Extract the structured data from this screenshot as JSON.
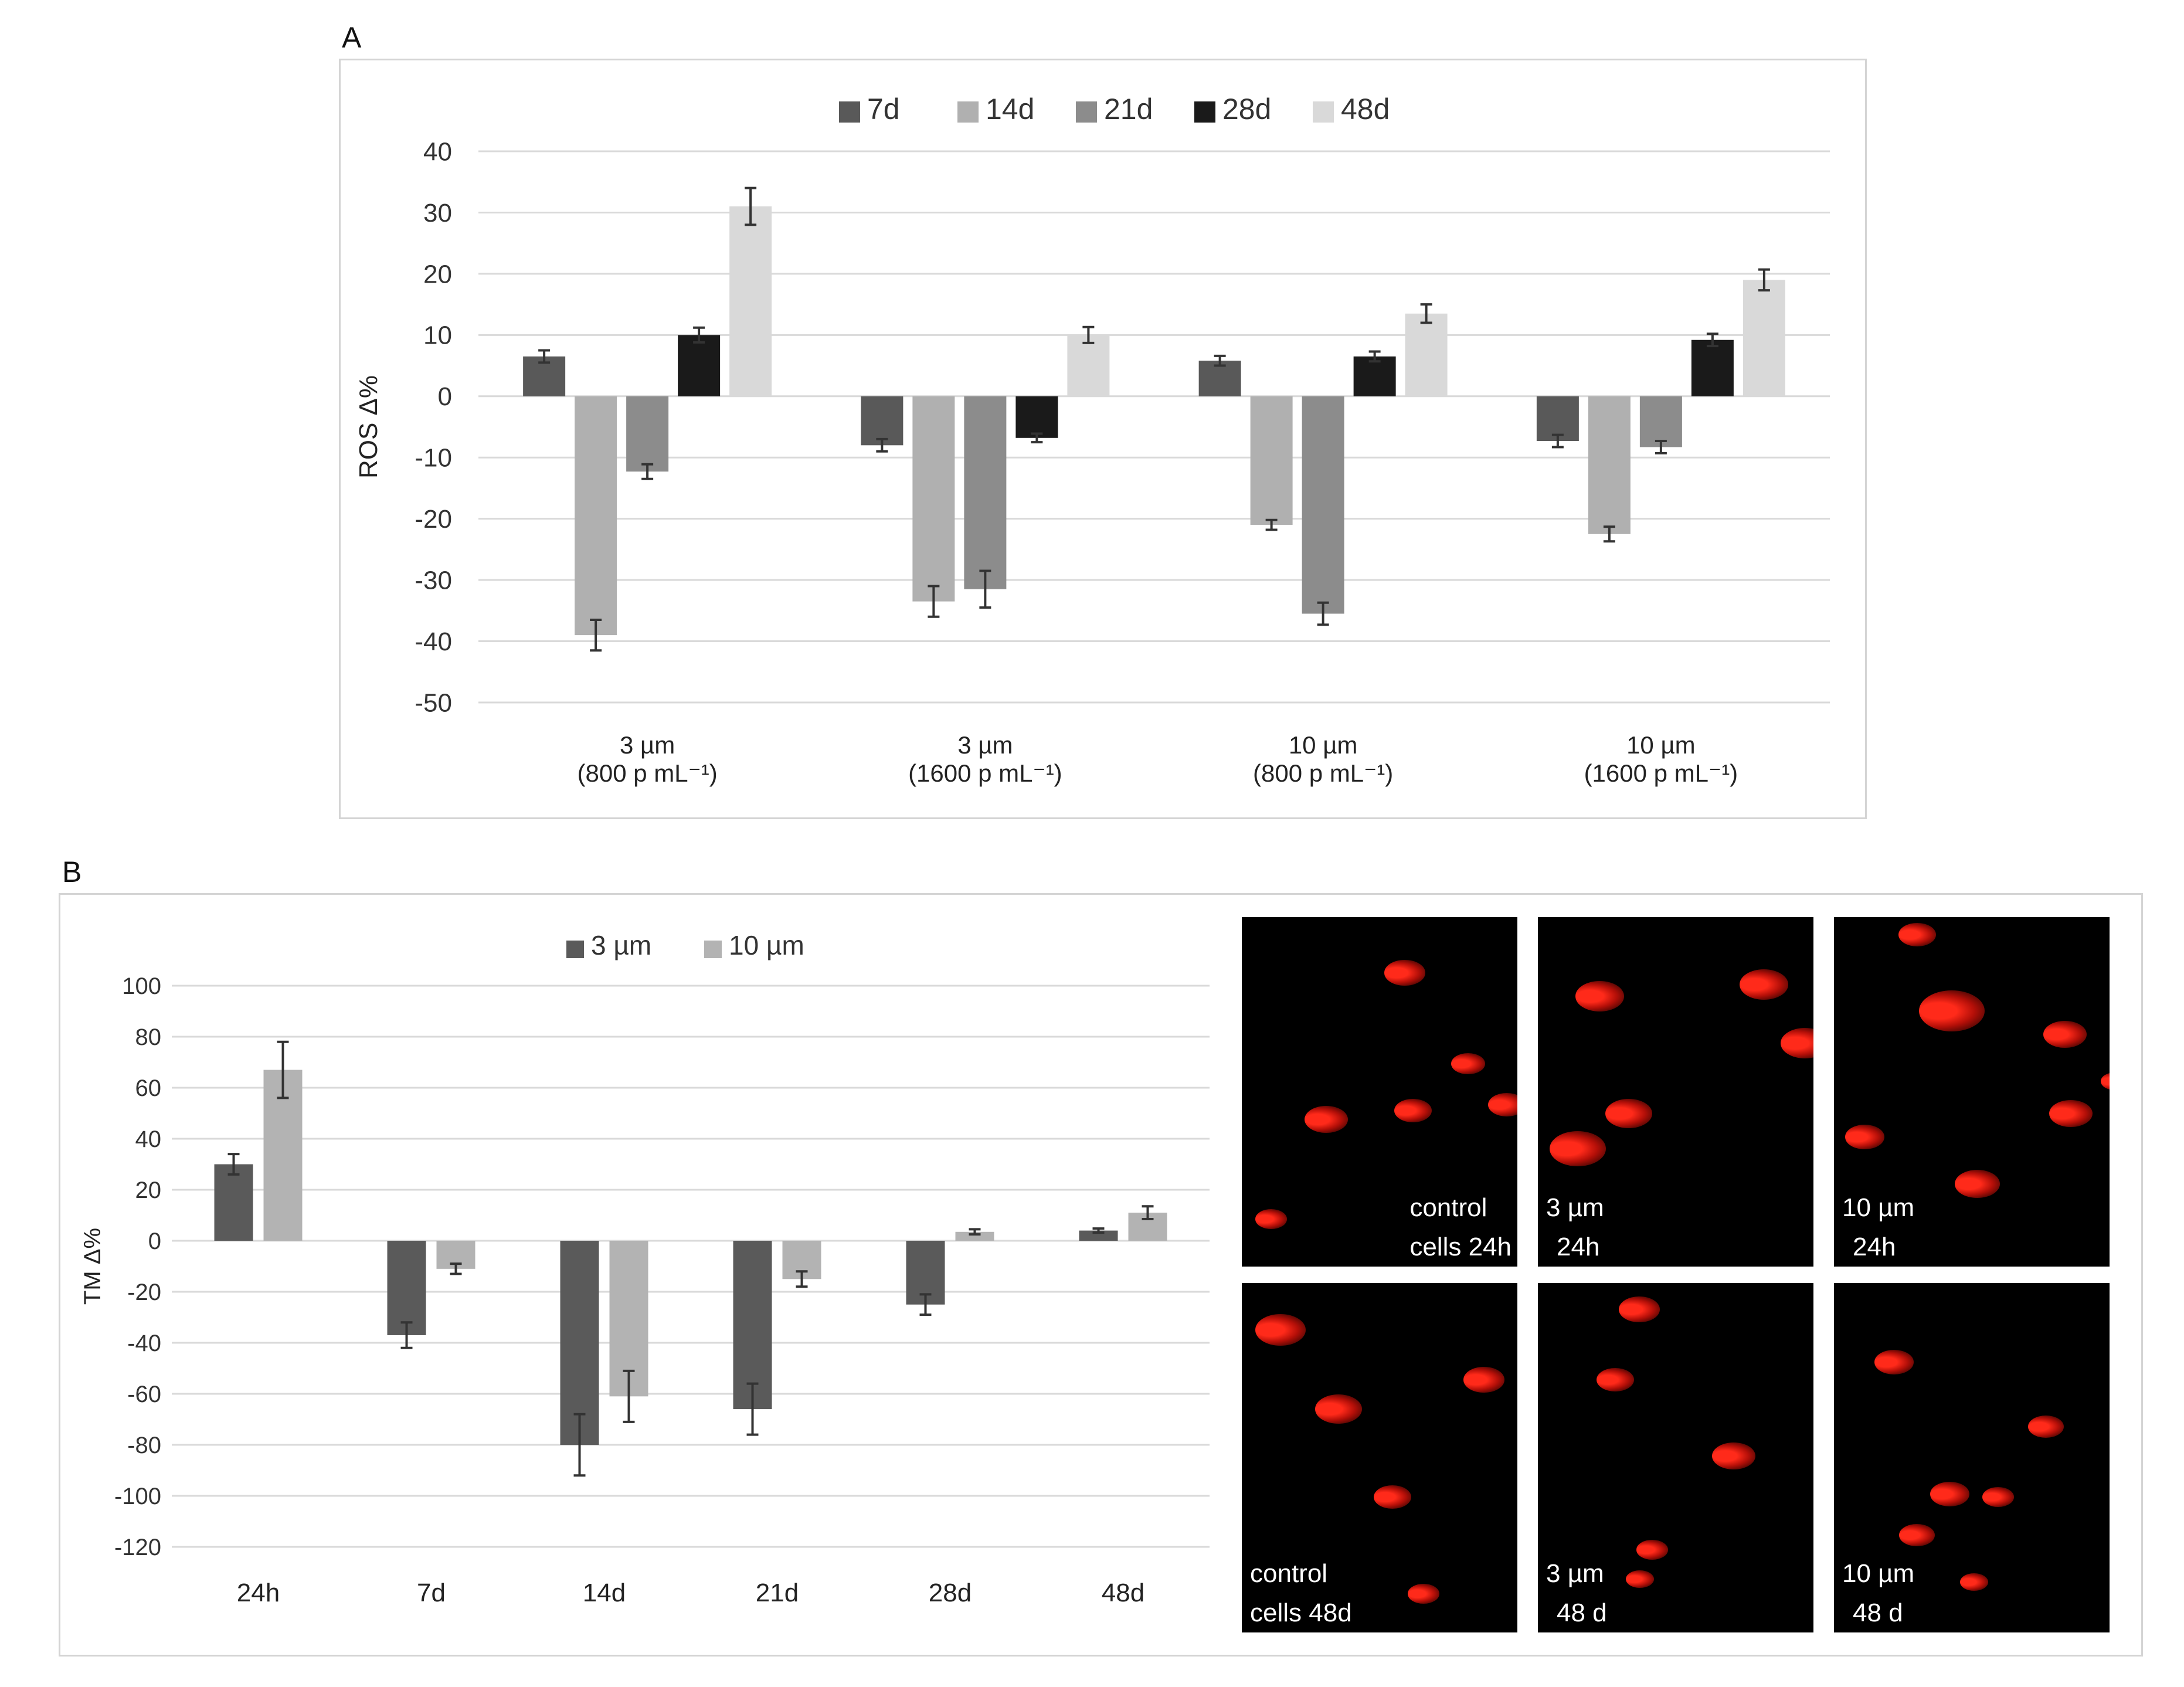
{
  "panel_labels": {
    "a": "A",
    "b": "B"
  },
  "colors": {
    "7d": "#595959",
    "14d": "#b0b0b0",
    "21d": "#8c8c8c",
    "28d": "#1a1a1a",
    "48d": "#d9d9d9",
    "3um": "#5a5a5a",
    "10um": "#b3b3b3",
    "grid": "#d9d9d9",
    "error": "#333333",
    "cell_core": "#ff2a1a",
    "cell_tail": "#b30f08"
  },
  "chart_data": [
    {
      "id": "panel-a",
      "type": "bar",
      "title": "",
      "ylabel": "ROS Δ%",
      "xlabel": "",
      "ylim": [
        -50,
        40
      ],
      "yticks": [
        40,
        30,
        20,
        10,
        0,
        -10,
        -20,
        -30,
        -40,
        -50
      ],
      "grid": true,
      "legend_position": "top",
      "categories": [
        [
          "3 µm",
          "(800 p mL⁻¹)"
        ],
        [
          "3 µm",
          "(1600 p mL⁻¹)"
        ],
        [
          "10 µm",
          "(800 p mL⁻¹)"
        ],
        [
          "10 µm",
          "(1600 p mL⁻¹)"
        ]
      ],
      "series": [
        {
          "name": "7d",
          "color_key": "7d",
          "values": [
            6.5,
            -8,
            5.8,
            -7.3
          ],
          "errors": [
            1,
            1,
            0.8,
            1
          ]
        },
        {
          "name": "14d",
          "color_key": "14d",
          "values": [
            -39,
            -33.5,
            -21,
            -22.5
          ],
          "errors": [
            2.5,
            2.5,
            0.8,
            1.2
          ]
        },
        {
          "name": "21d",
          "color_key": "21d",
          "values": [
            -12.3,
            -31.5,
            -35.5,
            -8.3
          ],
          "errors": [
            1.2,
            3,
            1.8,
            1
          ]
        },
        {
          "name": "28d",
          "color_key": "28d",
          "values": [
            10,
            -6.8,
            6.5,
            9.2
          ],
          "errors": [
            1.2,
            0.7,
            0.8,
            1
          ]
        },
        {
          "name": "48d",
          "color_key": "48d",
          "values": [
            31,
            10,
            13.5,
            19
          ],
          "errors": [
            3,
            1.3,
            1.5,
            1.7
          ]
        }
      ]
    },
    {
      "id": "panel-b",
      "type": "bar",
      "title": "",
      "ylabel": "TM Δ%",
      "xlabel": "",
      "ylim": [
        -120,
        100
      ],
      "yticks": [
        100,
        80,
        60,
        40,
        20,
        0,
        -20,
        -40,
        -60,
        -80,
        -100,
        -120
      ],
      "grid": true,
      "legend_position": "top",
      "categories": [
        [
          "24h"
        ],
        [
          "7d"
        ],
        [
          "14d"
        ],
        [
          "21d"
        ],
        [
          "28d"
        ],
        [
          "48d"
        ]
      ],
      "series": [
        {
          "name": "3 µm",
          "color_key": "3um",
          "values": [
            30,
            -37,
            -80,
            -66,
            -25,
            4
          ],
          "errors": [
            4,
            5,
            12,
            10,
            4,
            0.8
          ]
        },
        {
          "name": "10 µm",
          "color_key": "10um",
          "values": [
            67,
            -11,
            -61,
            -15,
            3.5,
            11
          ],
          "errors": [
            11,
            2,
            10,
            3,
            1,
            2.5
          ]
        }
      ]
    }
  ],
  "micrographs": [
    {
      "caption_lines": [
        "control",
        "cells 24h"
      ],
      "caption_align": "right",
      "caption_pos": "bottom"
    },
    {
      "caption_lines": [
        "3 µm",
        "24h"
      ],
      "caption_align": "left",
      "caption_pos": "bottom"
    },
    {
      "caption_lines": [
        "10 µm",
        "24h"
      ],
      "caption_align": "left",
      "caption_pos": "bottom"
    },
    {
      "caption_lines": [
        "control",
        "cells 48d"
      ],
      "caption_align": "left",
      "caption_pos": "bottom"
    },
    {
      "caption_lines": [
        "3 µm",
        "48 d"
      ],
      "caption_align": "left",
      "caption_pos": "bottom"
    },
    {
      "caption_lines": [
        "10 µm",
        "48 d"
      ],
      "caption_align": "left",
      "caption_pos": "bottom"
    }
  ]
}
